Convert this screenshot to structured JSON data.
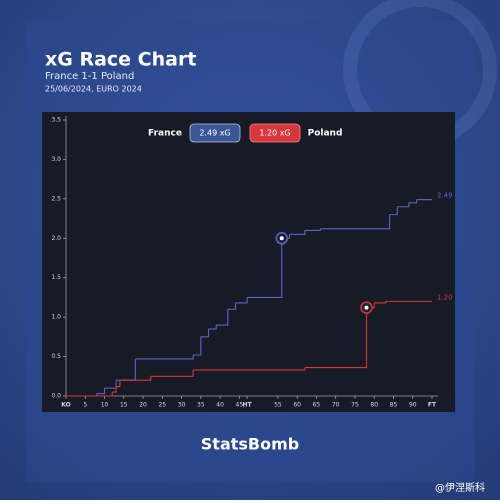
{
  "chart_data": {
    "type": "step",
    "title": "xG Race Chart",
    "subtitle": "France 1-1 Poland",
    "date_line": "25/06/2024, EURO 2024",
    "brand": "StatsBomb",
    "watermark": "@伊涅斯科",
    "xlim": [
      0,
      95
    ],
    "ylim": [
      0,
      3.5
    ],
    "xticks": [
      {
        "value": 0,
        "label": "KO"
      },
      5,
      10,
      15,
      20,
      25,
      30,
      35,
      40,
      45,
      {
        "value": 47,
        "label": "HT"
      },
      55,
      60,
      65,
      70,
      75,
      80,
      85,
      90,
      {
        "value": 95,
        "label": "FT"
      }
    ],
    "yticks": [
      {
        "value": 0,
        "label": "0.0"
      },
      0.5,
      {
        "value": 1,
        "label": "1.0"
      },
      1.5,
      {
        "value": 2,
        "label": "2.0"
      },
      2.5,
      {
        "value": 3,
        "label": "3.0"
      },
      3.5
    ],
    "series": [
      {
        "name": "France",
        "color": "#5d63c9",
        "legend_label": "2.49 xG",
        "x": [
          0,
          8,
          10,
          13,
          18,
          33,
          35,
          37,
          39,
          42,
          44,
          47,
          56,
          58,
          62,
          66,
          84,
          86,
          89,
          91,
          95
        ],
        "values": [
          0,
          0.03,
          0.1,
          0.2,
          0.47,
          0.52,
          0.75,
          0.85,
          0.9,
          1.1,
          1.18,
          1.25,
          2.0,
          2.05,
          2.1,
          2.12,
          2.3,
          2.4,
          2.45,
          2.49,
          2.49
        ],
        "value_labels": [
          null,
          null,
          null,
          null,
          null,
          null,
          null,
          null,
          null,
          null,
          null,
          null,
          null,
          null,
          null,
          null,
          null,
          null,
          null,
          null,
          "2.49"
        ],
        "goal_minutes": [
          56
        ]
      },
      {
        "name": "Poland",
        "color": "#d8363b",
        "legend_label": "1.20 xG",
        "x": [
          0,
          12,
          13,
          14,
          22,
          33,
          62,
          78,
          80,
          83,
          95
        ],
        "values": [
          0,
          0.05,
          0.12,
          0.2,
          0.25,
          0.33,
          0.36,
          1.12,
          1.18,
          1.2,
          1.2
        ],
        "value_labels": [
          null,
          null,
          null,
          null,
          null,
          null,
          null,
          null,
          null,
          null,
          "1.20"
        ],
        "goal_minutes": [
          78
        ]
      }
    ]
  }
}
